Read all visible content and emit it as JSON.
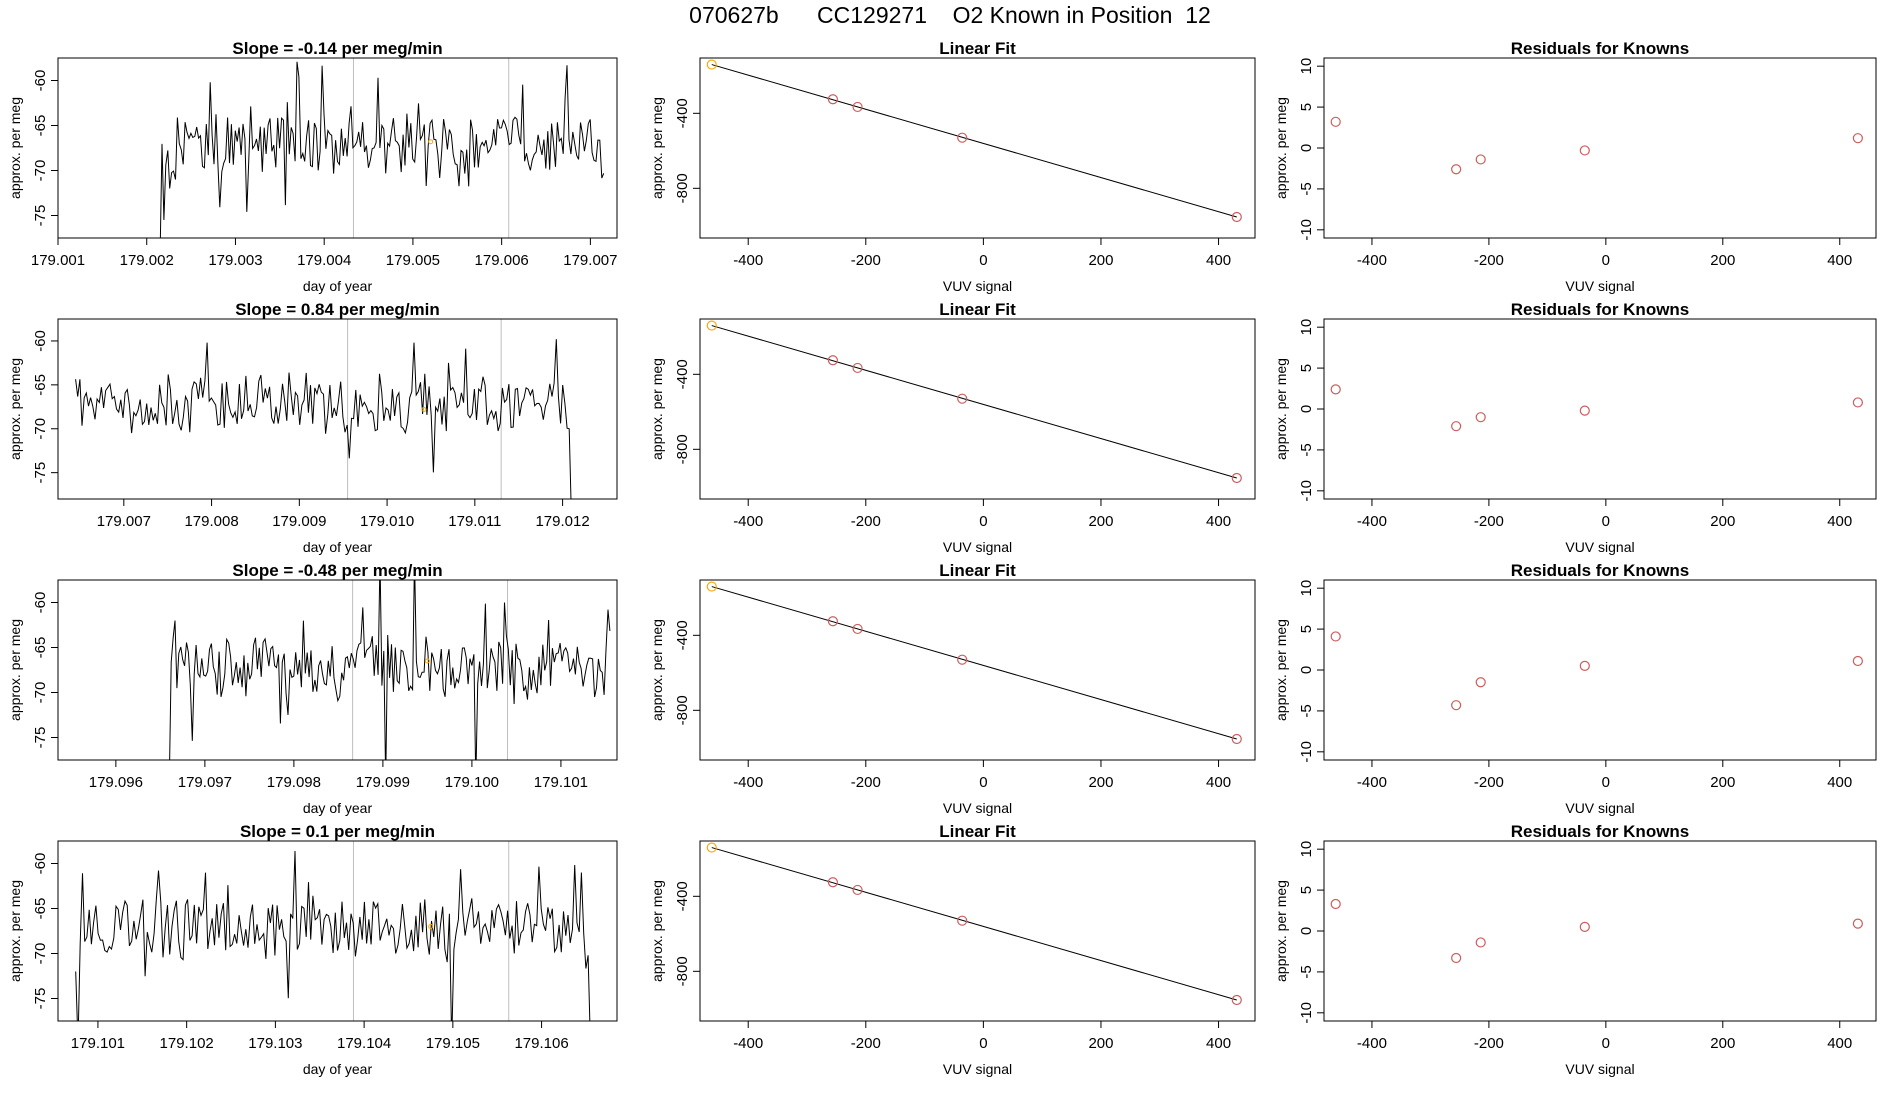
{
  "figure": {
    "title": "070627b      CC129271    O2 Known in Position  12"
  },
  "chart_data": [
    {
      "type": "line",
      "row": 1,
      "panel": "timeseries",
      "title": "Slope =  -0.14  per meg/min",
      "xlabel": "day of year",
      "ylabel": "approx. per meg",
      "xlim": [
        179.001,
        179.0073
      ],
      "ylim": [
        -77.5,
        -57.5
      ],
      "xticks": [
        179.001,
        179.002,
        179.003,
        179.004,
        179.005,
        179.006,
        179.007
      ],
      "xtick_labels": [
        "179.001",
        "179.002",
        "179.003",
        "179.004",
        "179.005",
        "179.006",
        "179.007"
      ],
      "yticks": [
        -75,
        -70,
        -65,
        -60
      ],
      "ytick_labels": [
        "-75",
        "-70",
        "-65",
        "-60"
      ],
      "vlines": [
        179.00433,
        179.00608
      ],
      "series_start": 179.00215,
      "series_end": 179.00715,
      "marker": {
        "x": 179.0052,
        "y": -66.8
      },
      "colors": {
        "line": "#000000",
        "vline": "#bebebe",
        "marker": "#ffa500"
      }
    },
    {
      "type": "scatter",
      "row": 1,
      "panel": "fit",
      "title": "Linear Fit",
      "xlabel": "VUV signal",
      "ylabel": "approx. per meg",
      "xlim": [
        -482,
        462
      ],
      "ylim": [
        -1065,
        -105
      ],
      "xticks": [
        -400,
        -200,
        0,
        200,
        400
      ],
      "xtick_labels": [
        "-400",
        "-200",
        "0",
        "200",
        "400"
      ],
      "yticks": [
        -800,
        -400
      ],
      "ytick_labels": [
        "-800",
        "-400"
      ],
      "x": [
        -462,
        -256,
        -214,
        -36,
        431
      ],
      "y": [
        -140,
        -325,
        -366,
        -530,
        -953
      ],
      "highlight_index": 0,
      "fit_line": {
        "x": [
          -462,
          431
        ],
        "y": [
          -140,
          -953
        ]
      },
      "colors": {
        "point": "#cd5c5c",
        "highlight": "#ffa500",
        "line": "#000000"
      }
    },
    {
      "type": "scatter",
      "row": 1,
      "panel": "residuals",
      "title": "Residuals for Knowns",
      "xlabel": "VUV signal",
      "ylabel": "approx. per meg",
      "xlim": [
        -482,
        462
      ],
      "ylim": [
        -11,
        11
      ],
      "xticks": [
        -400,
        -200,
        0,
        200,
        400
      ],
      "xtick_labels": [
        "-400",
        "-200",
        "0",
        "200",
        "400"
      ],
      "yticks": [
        -10,
        -5,
        0,
        5,
        10
      ],
      "ytick_labels": [
        "-10",
        "-5",
        "0",
        "5",
        "10"
      ],
      "x": [
        -462,
        -256,
        -214,
        -36,
        431
      ],
      "y": [
        3.2,
        -2.6,
        -1.4,
        -0.3,
        1.2
      ],
      "colors": {
        "point": "#cd5c5c"
      }
    },
    {
      "type": "line",
      "row": 2,
      "panel": "timeseries",
      "title": "Slope =  0.84  per meg/min",
      "xlabel": "day of year",
      "ylabel": "approx. per meg",
      "xlim": [
        179.00625,
        179.01262
      ],
      "ylim": [
        -78,
        -57.5
      ],
      "xticks": [
        179.007,
        179.008,
        179.009,
        179.01,
        179.011,
        179.012
      ],
      "xtick_labels": [
        "179.007",
        "179.008",
        "179.009",
        "179.010",
        "179.011",
        "179.012"
      ],
      "yticks": [
        -75,
        -70,
        -65,
        -60
      ],
      "ytick_labels": [
        "-75",
        "-70",
        "-65",
        "-60"
      ],
      "vlines": [
        179.00955,
        179.0113
      ],
      "series_start": 179.00645,
      "series_end": 179.0121,
      "marker": {
        "x": 179.01042,
        "y": -67.8
      },
      "colors": {
        "line": "#000000",
        "vline": "#bebebe",
        "marker": "#ffa500"
      }
    },
    {
      "type": "scatter",
      "row": 2,
      "panel": "fit",
      "title": "Linear Fit",
      "xlabel": "VUV signal",
      "ylabel": "approx. per meg",
      "xlim": [
        -482,
        462
      ],
      "ylim": [
        -1065,
        -105
      ],
      "xticks": [
        -400,
        -200,
        0,
        200,
        400
      ],
      "xtick_labels": [
        "-400",
        "-200",
        "0",
        "200",
        "400"
      ],
      "yticks": [
        -800,
        -400
      ],
      "ytick_labels": [
        "-800",
        "-400"
      ],
      "x": [
        -462,
        -256,
        -214,
        -36,
        431
      ],
      "y": [
        -140,
        -325,
        -366,
        -530,
        -953
      ],
      "highlight_index": 0,
      "fit_line": {
        "x": [
          -462,
          431
        ],
        "y": [
          -140,
          -953
        ]
      },
      "colors": {
        "point": "#cd5c5c",
        "highlight": "#ffa500",
        "line": "#000000"
      }
    },
    {
      "type": "scatter",
      "row": 2,
      "panel": "residuals",
      "title": "Residuals for Knowns",
      "xlabel": "VUV signal",
      "ylabel": "approx. per meg",
      "xlim": [
        -482,
        462
      ],
      "ylim": [
        -11,
        11
      ],
      "xticks": [
        -400,
        -200,
        0,
        200,
        400
      ],
      "xtick_labels": [
        "-400",
        "-200",
        "0",
        "200",
        "400"
      ],
      "yticks": [
        -10,
        -5,
        0,
        5,
        10
      ],
      "ytick_labels": [
        "-10",
        "-5",
        "0",
        "5",
        "10"
      ],
      "x": [
        -462,
        -256,
        -214,
        -36,
        431
      ],
      "y": [
        2.4,
        -2.1,
        -1.0,
        -0.2,
        0.8
      ],
      "colors": {
        "point": "#cd5c5c"
      }
    },
    {
      "type": "line",
      "row": 3,
      "panel": "timeseries",
      "title": "Slope =  -0.48  per meg/min",
      "xlabel": "day of year",
      "ylabel": "approx. per meg",
      "xlim": [
        179.09535,
        179.10163
      ],
      "ylim": [
        -77.5,
        -57.5
      ],
      "xticks": [
        179.096,
        179.097,
        179.098,
        179.099,
        179.1,
        179.101
      ],
      "xtick_labels": [
        "179.096",
        "179.097",
        "179.098",
        "179.099",
        "179.100",
        "179.101"
      ],
      "yticks": [
        -75,
        -70,
        -65,
        -60
      ],
      "ytick_labels": [
        "-75",
        "-70",
        "-65",
        "-60"
      ],
      "vlines": [
        179.09866,
        179.1004
      ],
      "series_start": 179.0966,
      "series_end": 179.10155,
      "marker": {
        "x": 179.0995,
        "y": -66.5
      },
      "colors": {
        "line": "#000000",
        "vline": "#bebebe",
        "marker": "#ffa500"
      }
    },
    {
      "type": "scatter",
      "row": 3,
      "panel": "fit",
      "title": "Linear Fit",
      "xlabel": "VUV signal",
      "ylabel": "approx. per meg",
      "xlim": [
        -482,
        462
      ],
      "ylim": [
        -1065,
        -105
      ],
      "xticks": [
        -400,
        -200,
        0,
        200,
        400
      ],
      "xtick_labels": [
        "-400",
        "-200",
        "0",
        "200",
        "400"
      ],
      "yticks": [
        -800,
        -400
      ],
      "ytick_labels": [
        "-800",
        "-400"
      ],
      "x": [
        -462,
        -256,
        -214,
        -36,
        431
      ],
      "y": [
        -140,
        -325,
        -366,
        -530,
        -953
      ],
      "highlight_index": 0,
      "fit_line": {
        "x": [
          -462,
          431
        ],
        "y": [
          -140,
          -953
        ]
      },
      "colors": {
        "point": "#cd5c5c",
        "highlight": "#ffa500",
        "line": "#000000"
      }
    },
    {
      "type": "scatter",
      "row": 3,
      "panel": "residuals",
      "title": "Residuals for Knowns",
      "xlabel": "VUV signal",
      "ylabel": "approx. per meg",
      "xlim": [
        -482,
        462
      ],
      "ylim": [
        -11,
        11
      ],
      "xticks": [
        -400,
        -200,
        0,
        200,
        400
      ],
      "xtick_labels": [
        "-400",
        "-200",
        "0",
        "200",
        "400"
      ],
      "yticks": [
        -10,
        -5,
        0,
        5,
        10
      ],
      "ytick_labels": [
        "-10",
        "-5",
        "0",
        "5",
        "10"
      ],
      "x": [
        -462,
        -256,
        -214,
        -36,
        431
      ],
      "y": [
        4.1,
        -4.3,
        -1.5,
        0.5,
        1.1
      ],
      "colors": {
        "point": "#cd5c5c"
      }
    },
    {
      "type": "line",
      "row": 4,
      "panel": "timeseries",
      "title": "Slope =  0.1  per meg/min",
      "xlabel": "day of year",
      "ylabel": "approx. per meg",
      "xlim": [
        179.10055,
        179.10685
      ],
      "ylim": [
        -77.5,
        -57.5
      ],
      "xticks": [
        179.101,
        179.102,
        179.103,
        179.104,
        179.105,
        179.106
      ],
      "xtick_labels": [
        "179.101",
        "179.102",
        "179.103",
        "179.104",
        "179.105",
        "179.106"
      ],
      "yticks": [
        -75,
        -70,
        -65,
        -60
      ],
      "ytick_labels": [
        "-75",
        "-70",
        "-65",
        "-60"
      ],
      "vlines": [
        179.10388,
        179.10563
      ],
      "series_start": 179.10075,
      "series_end": 179.10655,
      "marker": {
        "x": 179.10475,
        "y": -67.0
      },
      "colors": {
        "line": "#000000",
        "vline": "#bebebe",
        "marker": "#ffa500"
      }
    },
    {
      "type": "scatter",
      "row": 4,
      "panel": "fit",
      "title": "Linear Fit",
      "xlabel": "VUV signal",
      "ylabel": "approx. per meg",
      "xlim": [
        -482,
        462
      ],
      "ylim": [
        -1065,
        -105
      ],
      "xticks": [
        -400,
        -200,
        0,
        200,
        400
      ],
      "xtick_labels": [
        "-400",
        "-200",
        "0",
        "200",
        "400"
      ],
      "yticks": [
        -800,
        -400
      ],
      "ytick_labels": [
        "-800",
        "-400"
      ],
      "x": [
        -462,
        -256,
        -214,
        -36,
        431
      ],
      "y": [
        -140,
        -325,
        -366,
        -530,
        -953
      ],
      "highlight_index": 0,
      "fit_line": {
        "x": [
          -462,
          431
        ],
        "y": [
          -140,
          -953
        ]
      },
      "colors": {
        "point": "#cd5c5c",
        "highlight": "#ffa500",
        "line": "#000000"
      }
    },
    {
      "type": "scatter",
      "row": 4,
      "panel": "residuals",
      "title": "Residuals for Knowns",
      "xlabel": "VUV signal",
      "ylabel": "approx. per meg",
      "xlim": [
        -482,
        462
      ],
      "ylim": [
        -11,
        11
      ],
      "xticks": [
        -400,
        -200,
        0,
        200,
        400
      ],
      "xtick_labels": [
        "-400",
        "-200",
        "0",
        "200",
        "400"
      ],
      "yticks": [
        -10,
        -5,
        0,
        5,
        10
      ],
      "ytick_labels": [
        "-10",
        "-5",
        "0",
        "5",
        "10"
      ],
      "x": [
        -462,
        -256,
        -214,
        -36,
        431
      ],
      "y": [
        3.3,
        -3.3,
        -1.4,
        0.5,
        0.9
      ],
      "colors": {
        "point": "#cd5c5c"
      }
    }
  ]
}
